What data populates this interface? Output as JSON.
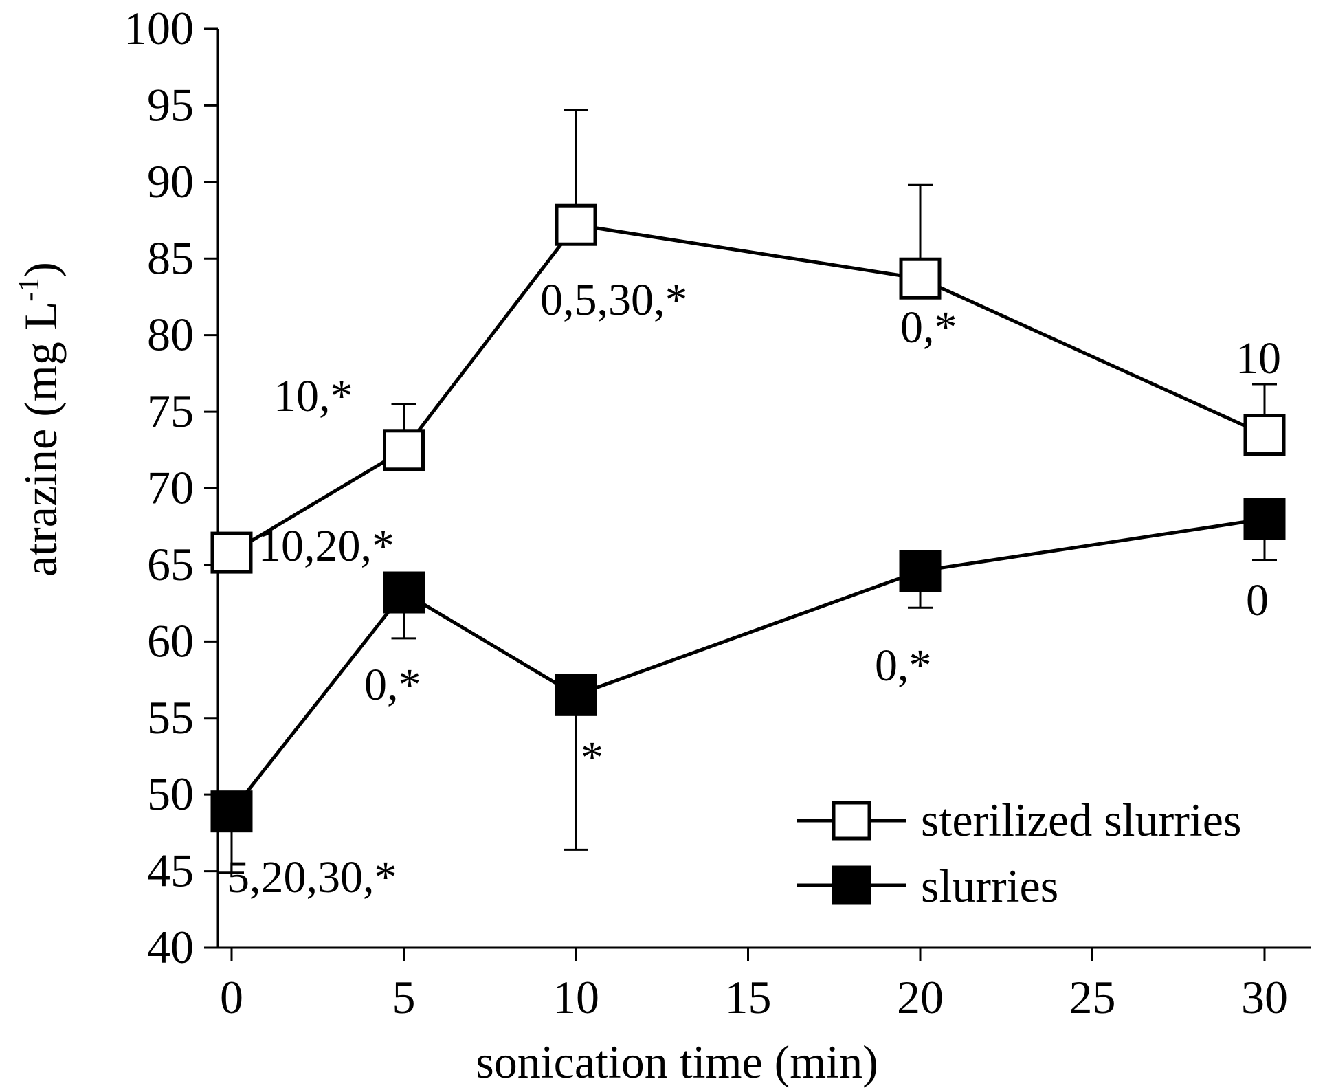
{
  "chart_data": {
    "type": "line",
    "title": "",
    "xlabel": "sonication time (min)",
    "ylabel": "atrazine  (mg L",
    "ylabel_sup": "-1",
    "ylabel_close": ")",
    "xlim": [
      0,
      30
    ],
    "ylim": [
      40,
      100
    ],
    "xticks": [
      0,
      5,
      10,
      15,
      20,
      25,
      30
    ],
    "yticks": [
      40,
      45,
      50,
      55,
      60,
      65,
      70,
      75,
      80,
      85,
      90,
      95,
      100
    ],
    "series": [
      {
        "name": "sterilized slurries",
        "marker": "open-square",
        "x": [
          0,
          5,
          10,
          20,
          30
        ],
        "y": [
          65.8,
          72.5,
          87.2,
          83.7,
          73.5
        ],
        "error_upper": [
          0,
          3.0,
          7.5,
          6.1,
          3.3
        ],
        "annotations": [
          "",
          "10,*",
          "0,5,30,*",
          "0,*",
          "10"
        ]
      },
      {
        "name": "slurries",
        "marker": "filled-square",
        "x": [
          0,
          5,
          10,
          20,
          30
        ],
        "y": [
          48.9,
          63.2,
          56.5,
          64.6,
          68.0
        ],
        "error_lower": [
          4.0,
          3.0,
          10.1,
          2.4,
          2.7
        ],
        "annotations": [
          "5,20,30,*",
          "0,*",
          "*",
          "0,*",
          "0"
        ],
        "extra_annotations": [
          "10,20,*"
        ]
      }
    ],
    "legend": "bottom-right"
  }
}
